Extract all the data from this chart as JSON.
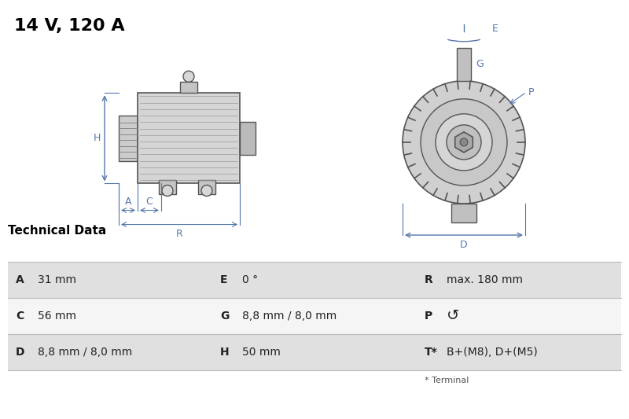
{
  "title": "14 V, 120 A",
  "title_fontsize": 16,
  "title_fontweight": "bold",
  "bg_color": "#ffffff",
  "table_section_title": "Technical Data",
  "table_row_colors": [
    "#e0e0e0",
    "#f5f5f5",
    "#e0e0e0"
  ],
  "table_line_color": "#bbbbbb",
  "table_data": [
    [
      [
        "A",
        "31 mm"
      ],
      [
        "E",
        "0 °"
      ],
      [
        "R",
        "max. 180 mm"
      ]
    ],
    [
      [
        "C",
        "56 mm"
      ],
      [
        "G",
        "8,8 mm / 8,0 mm"
      ],
      [
        "P",
        "↺"
      ]
    ],
    [
      [
        "D",
        "8,8 mm / 8,0 mm"
      ],
      [
        "H",
        "50 mm"
      ],
      [
        "T*",
        "B+(M8), D+(M5)"
      ]
    ]
  ],
  "footnote": "* Terminal",
  "dim_color": "#5577aa",
  "drawing_line_color": "#555555"
}
